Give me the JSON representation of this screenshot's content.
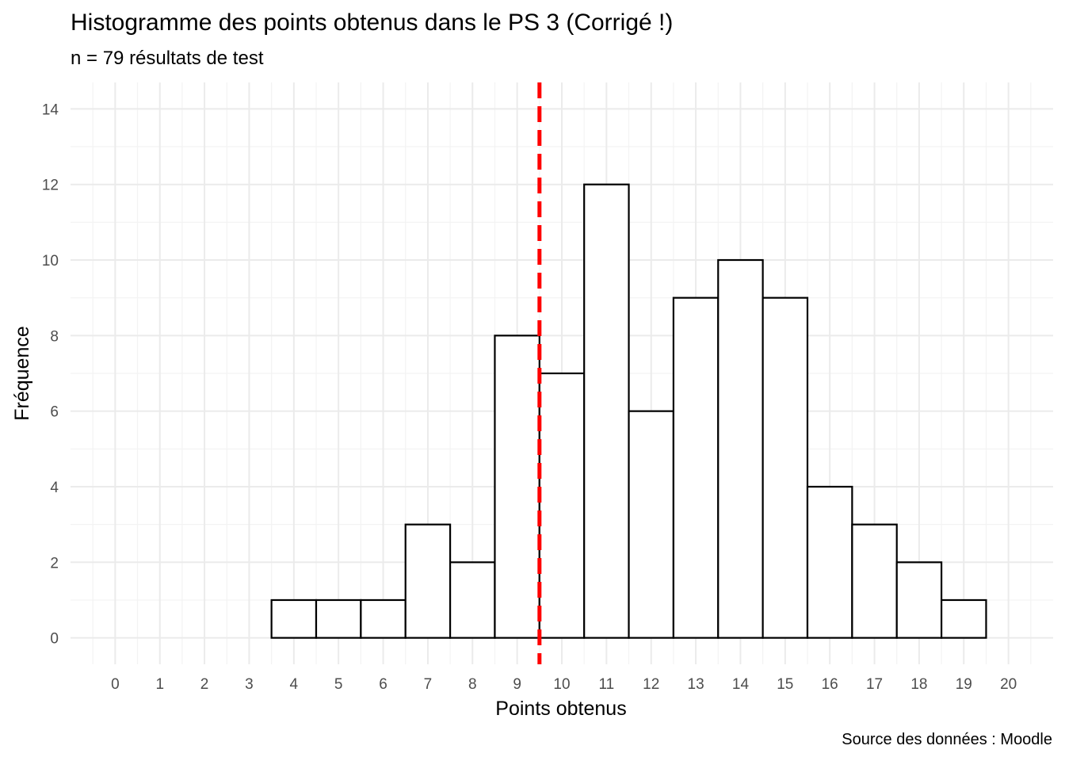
{
  "chart_data": {
    "type": "bar",
    "title": "Histogramme des points obtenus dans le PS 3 (Corrigé !)",
    "subtitle": "n = 79 résultats de test",
    "caption": "Source des données : Moodle",
    "xlabel": "Points obtenus",
    "ylabel": "Fréquence",
    "bin_width": 1,
    "categories": [
      4,
      5,
      6,
      7,
      8,
      9,
      10,
      11,
      12,
      13,
      14,
      15,
      16,
      17,
      18,
      19
    ],
    "values": [
      1,
      1,
      1,
      3,
      2,
      8,
      7,
      12,
      6,
      9,
      10,
      9,
      4,
      3,
      2,
      1
    ],
    "xlim": [
      -1,
      21
    ],
    "ylim": [
      -0.7,
      14.7
    ],
    "x_ticks": [
      "0",
      "1",
      "2",
      "3",
      "4",
      "5",
      "6",
      "7",
      "8",
      "9",
      "10",
      "11",
      "12",
      "13",
      "14",
      "15",
      "16",
      "17",
      "18",
      "19",
      "20"
    ],
    "y_ticks": [
      "0",
      "2",
      "4",
      "6",
      "8",
      "10",
      "12",
      "14"
    ],
    "reference_line": {
      "x": 9.5,
      "style": "dashed"
    },
    "grid": true,
    "legend": "none",
    "colors": {
      "bar_fill": "#ffffff",
      "bar_stroke": "#000000",
      "reference_line": "#ff0000",
      "grid_major": "#ebebeb",
      "grid_minor": "#f3f3f3",
      "tick_text": "#4d4d4d"
    }
  }
}
